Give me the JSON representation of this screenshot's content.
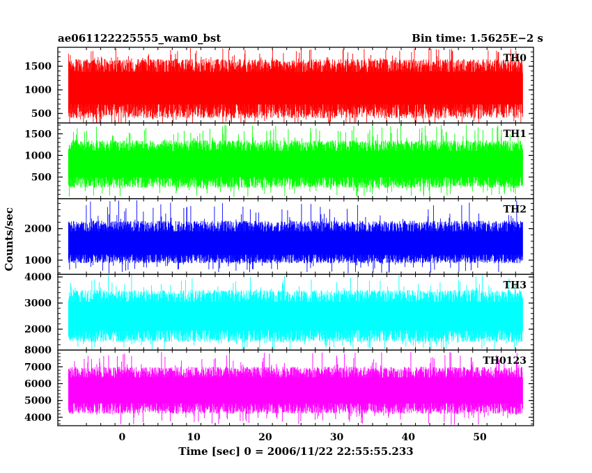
{
  "chart_data": {
    "type": "line",
    "title": "ae061122225555_wam0_bst",
    "subtitle": "Bin time: 1.5625E−2 s",
    "xlabel": "Time [sec] 0 = 2006/11/22 22:55:55.233",
    "ylabel": "Counts/sec",
    "xlim": [
      -9,
      57.5
    ],
    "x_data_range": [
      -7.5,
      56
    ],
    "x_ticks": [
      0,
      10,
      20,
      30,
      40,
      50
    ],
    "grid": false,
    "series": [
      {
        "name": "TH0",
        "color": "#ff0000",
        "ylim": [
          300,
          1900
        ],
        "y_ticks": [
          500,
          1000,
          1500
        ],
        "mean": 1050,
        "band": [
          400,
          1650
        ],
        "min_spike": 240,
        "max_spike": 1880
      },
      {
        "name": "TH1",
        "color": "#00ff00",
        "ylim": [
          0,
          1750
        ],
        "y_ticks": [
          500,
          1000,
          1500
        ],
        "mean": 800,
        "band": [
          250,
          1350
        ],
        "min_spike": 40,
        "max_spike": 1720
      },
      {
        "name": "TH2",
        "color": "#0000ff",
        "ylim": [
          550,
          2950
        ],
        "y_ticks": [
          1000,
          2000
        ],
        "mean": 1500,
        "band": [
          900,
          2250
        ],
        "min_spike": 580,
        "max_spike": 2900
      },
      {
        "name": "TH3",
        "color": "#00ffff",
        "ylim": [
          1200,
          4100
        ],
        "y_ticks": [
          2000,
          3000,
          4000
        ],
        "mean": 2500,
        "band": [
          1500,
          3500
        ],
        "min_spike": 1210,
        "max_spike": 4090
      },
      {
        "name": "TH0123",
        "color": "#ff00ff",
        "ylim": [
          3500,
          8000
        ],
        "y_ticks": [
          4000,
          5000,
          6000,
          7000,
          8000
        ],
        "mean": 5600,
        "band": [
          4200,
          7000
        ],
        "min_spike": 3550,
        "max_spike": 7950
      }
    ]
  }
}
